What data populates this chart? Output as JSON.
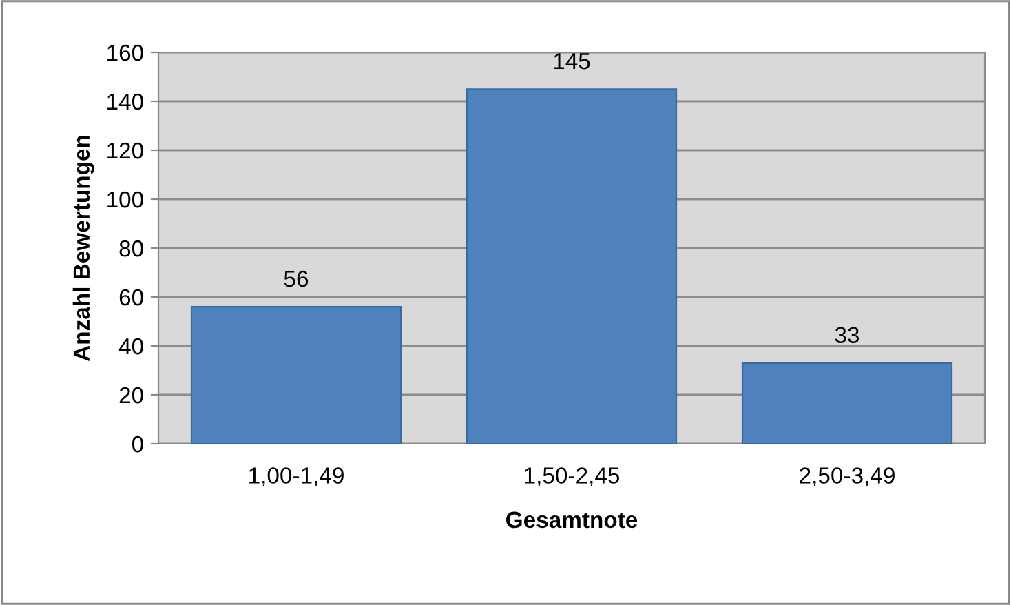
{
  "chart_data": {
    "type": "bar",
    "xlabel": "Gesamtnote",
    "ylabel": "Anzahl Bewertungen",
    "categories": [
      "1,00-1,49",
      "1,50-2,45",
      "2,50-3,49"
    ],
    "values": [
      56,
      145,
      33
    ],
    "color": "#4f81bd",
    "ylim": [
      0,
      160
    ],
    "yticks": [
      0,
      20,
      40,
      60,
      80,
      100,
      120,
      140,
      160
    ],
    "grid": "y",
    "data_labels": true
  }
}
